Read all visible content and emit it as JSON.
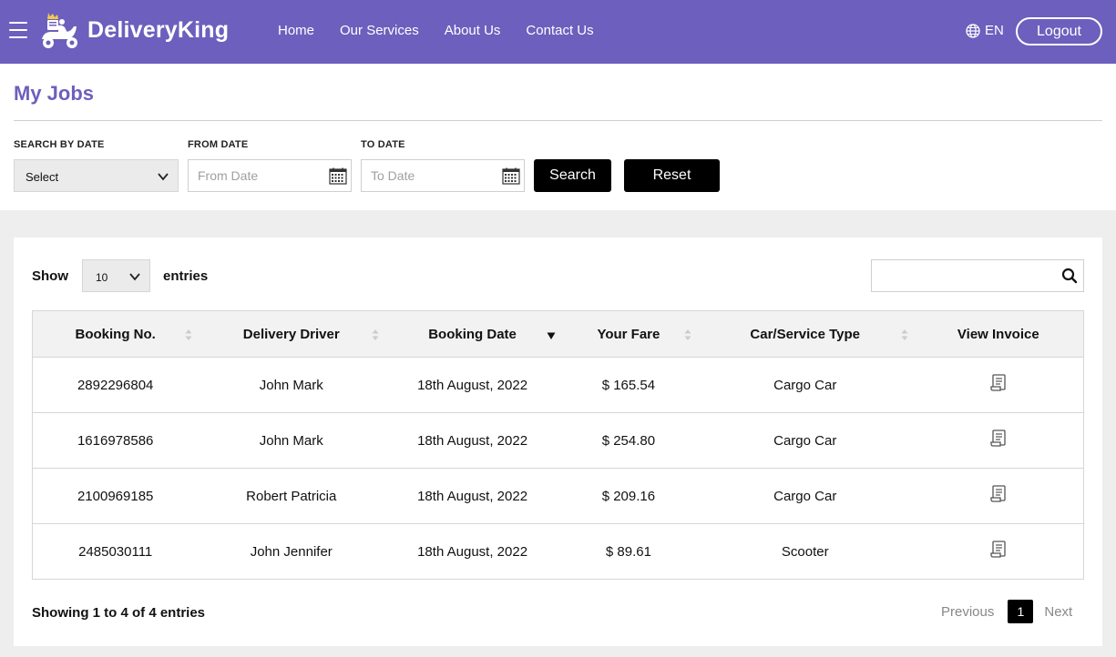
{
  "header": {
    "brand": "DeliveryKing",
    "nav": [
      "Home",
      "Our Services",
      "About Us",
      "Contact Us"
    ],
    "language": "EN",
    "logout_label": "Logout"
  },
  "filters": {
    "page_title": "My Jobs",
    "search_by_date_label": "SEARCH BY DATE",
    "search_by_date_value": "Select",
    "from_date_label": "FROM DATE",
    "from_date_placeholder": "From Date",
    "to_date_label": "TO DATE",
    "to_date_placeholder": "To Date",
    "search_label": "Search",
    "reset_label": "Reset"
  },
  "table_controls": {
    "show_label": "Show",
    "entries_value": "10",
    "entries_label": "entries",
    "search_value": ""
  },
  "table": {
    "columns": [
      "Booking No.",
      "Delivery Driver",
      "Booking Date",
      "Your Fare",
      "Car/Service Type",
      "View Invoice"
    ],
    "rows": [
      {
        "booking_no": "2892296804",
        "driver": "John Mark",
        "date": "18th August, 2022",
        "fare": "$ 165.54",
        "type": "Cargo Car"
      },
      {
        "booking_no": "1616978586",
        "driver": "John Mark",
        "date": "18th August, 2022",
        "fare": "$ 254.80",
        "type": "Cargo Car"
      },
      {
        "booking_no": "2100969185",
        "driver": "Robert Patricia",
        "date": "18th August, 2022",
        "fare": "$ 209.16",
        "type": "Cargo Car"
      },
      {
        "booking_no": "2485030111",
        "driver": "John Jennifer",
        "date": "18th August, 2022",
        "fare": "$ 89.61",
        "type": "Scooter"
      }
    ]
  },
  "footer": {
    "showing": "Showing 1 to 4 of 4 entries",
    "previous": "Previous",
    "current_page": "1",
    "next": "Next"
  },
  "colors": {
    "brand": "#6d5fbd",
    "button_dark": "#000000"
  },
  "icons": [
    "menu-icon",
    "scooter-logo-icon",
    "globe-icon",
    "chevron-down-icon",
    "calendar-icon",
    "search-icon",
    "sort-icon",
    "invoice-icon"
  ]
}
